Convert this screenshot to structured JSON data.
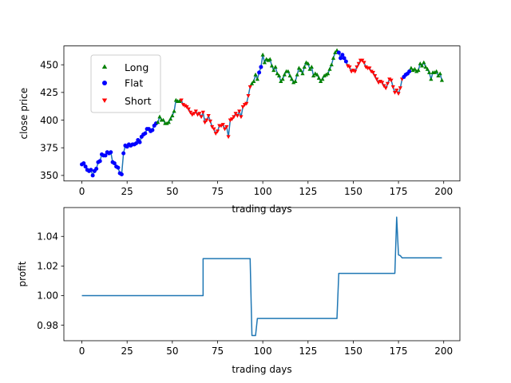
{
  "chart_data": [
    {
      "type": "line",
      "xlabel": "trading days",
      "ylabel": "close price",
      "xlim": [
        -9.95,
        208.95
      ],
      "ylim": [
        345,
        467
      ],
      "x_ticks": [
        0,
        25,
        50,
        75,
        100,
        125,
        150,
        175,
        200
      ],
      "y_ticks": [
        350,
        375,
        400,
        425,
        450
      ],
      "legend": {
        "placement": "upper-left",
        "entries": [
          {
            "label": "Long",
            "marker": "triangle-up",
            "color": "#008000"
          },
          {
            "label": "Flat",
            "marker": "circle",
            "color": "#0000ff"
          },
          {
            "label": "Short",
            "marker": "triangle-down",
            "color": "#ff0000"
          }
        ]
      },
      "line_color": "#1f77b4",
      "series": [
        {
          "x": [
            0,
            1,
            2,
            3,
            4,
            5,
            6,
            7,
            8,
            9,
            10,
            11,
            12,
            13,
            14,
            15,
            16,
            17,
            18,
            19,
            20,
            21,
            22,
            23,
            24,
            25,
            26,
            27,
            28,
            29,
            30,
            31,
            32,
            33,
            34,
            35,
            36,
            37,
            38,
            39,
            40,
            41,
            42,
            43,
            44,
            45,
            46,
            47,
            48,
            49,
            50,
            51,
            52,
            53,
            54,
            55,
            56,
            57,
            58,
            59,
            60,
            61,
            62,
            63,
            64,
            65,
            66,
            67,
            68,
            69,
            70,
            71,
            72,
            73,
            74,
            75,
            76,
            77,
            78,
            79,
            80,
            81,
            82,
            83,
            84,
            85,
            86,
            87,
            88,
            89,
            90,
            91,
            92,
            93,
            94,
            95,
            96,
            97,
            98,
            99,
            100,
            101,
            102,
            103,
            104,
            105,
            106,
            107,
            108,
            109,
            110,
            111,
            112,
            113,
            114,
            115,
            116,
            117,
            118,
            119,
            120,
            121,
            122,
            123,
            124,
            125,
            126,
            127,
            128,
            129,
            130,
            131,
            132,
            133,
            134,
            135,
            136,
            137,
            138,
            139,
            140,
            141,
            142,
            143,
            144,
            145,
            146,
            147,
            148,
            149,
            150,
            151,
            152,
            153,
            154,
            155,
            156,
            157,
            158,
            159,
            160,
            161,
            162,
            163,
            164,
            165,
            166,
            167,
            168,
            169,
            170,
            171,
            172,
            173,
            174,
            175,
            176,
            177,
            178,
            179,
            180,
            181,
            182,
            183,
            184,
            185,
            186,
            187,
            188,
            189,
            190,
            191,
            192,
            193,
            194,
            195,
            196,
            197,
            198,
            199
          ],
          "y": [
            360,
            361,
            358,
            355,
            354,
            355,
            350,
            354,
            356,
            362,
            363,
            369,
            368,
            368,
            371,
            370,
            371,
            362,
            361,
            358,
            357,
            352,
            351,
            370,
            377,
            376,
            378,
            377,
            378,
            378,
            379,
            382,
            380,
            385,
            387,
            388,
            392,
            392,
            390,
            391,
            395,
            397,
            398,
            403,
            400,
            400,
            397,
            397,
            398,
            401,
            404,
            408,
            418,
            417,
            417,
            418,
            414,
            413,
            412,
            410,
            407,
            405,
            406,
            408,
            405,
            406,
            403,
            407,
            398,
            400,
            404,
            399,
            394,
            392,
            388,
            390,
            395,
            395,
            396,
            392,
            394,
            385,
            400,
            401,
            403,
            406,
            404,
            408,
            403,
            412,
            414,
            415,
            422,
            430,
            433,
            435,
            441,
            437,
            443,
            448,
            459,
            452,
            455,
            454,
            455,
            449,
            445,
            448,
            442,
            440,
            435,
            437,
            441,
            444,
            444,
            440,
            437,
            434,
            435,
            441,
            447,
            445,
            442,
            448,
            452,
            451,
            446,
            448,
            440,
            442,
            441,
            438,
            435,
            437,
            440,
            441,
            442,
            446,
            450,
            456,
            461,
            463,
            461,
            456,
            459,
            456,
            453,
            449,
            448,
            444,
            445,
            444,
            448,
            451,
            454,
            454,
            452,
            448,
            447,
            447,
            444,
            443,
            440,
            437,
            434,
            435,
            434,
            431,
            429,
            433,
            437,
            436,
            430,
            425,
            427,
            424,
            429,
            437,
            439,
            441,
            442,
            444,
            447,
            445,
            446,
            444,
            445,
            451,
            449,
            452,
            448,
            446,
            443,
            437,
            443,
            443,
            444,
            440,
            442,
            436
          ],
          "positions": [
            "F",
            "F",
            "F",
            "F",
            "F",
            "F",
            "F",
            "F",
            "F",
            "F",
            "F",
            "F",
            "F",
            "F",
            "F",
            "F",
            "F",
            "F",
            "F",
            "F",
            "F",
            "F",
            "F",
            "F",
            "F",
            "F",
            "F",
            "F",
            "F",
            "F",
            "F",
            "F",
            "F",
            "F",
            "F",
            "F",
            "F",
            "F",
            "F",
            "F",
            "F",
            "F",
            "L",
            "L",
            "L",
            "L",
            "L",
            "L",
            "L",
            "L",
            "L",
            "L",
            "L",
            "L",
            "L",
            "S",
            "S",
            "S",
            "S",
            "S",
            "S",
            "S",
            "S",
            "S",
            "S",
            "S",
            "S",
            "S",
            "S",
            "S",
            "S",
            "S",
            "S",
            "S",
            "S",
            "S",
            "S",
            "S",
            "S",
            "S",
            "S",
            "S",
            "S",
            "S",
            "S",
            "S",
            "S",
            "S",
            "S",
            "S",
            "S",
            "S",
            "S",
            "S",
            "L",
            "L",
            "L",
            "L",
            "F",
            "F",
            "L",
            "L",
            "L",
            "L",
            "L",
            "L",
            "L",
            "L",
            "L",
            "L",
            "L",
            "L",
            "L",
            "L",
            "L",
            "L",
            "L",
            "L",
            "L",
            "L",
            "L",
            "L",
            "L",
            "L",
            "L",
            "L",
            "L",
            "L",
            "L",
            "L",
            "L",
            "L",
            "L",
            "L",
            "L",
            "L",
            "L",
            "L",
            "L",
            "L",
            "L",
            "L",
            "F",
            "F",
            "F",
            "F",
            "F",
            "S",
            "S",
            "S",
            "S",
            "S",
            "S",
            "S",
            "S",
            "S",
            "S",
            "S",
            "S",
            "S",
            "S",
            "S",
            "S",
            "S",
            "S",
            "S",
            "S",
            "S",
            "S",
            "S",
            "S",
            "S",
            "S",
            "S",
            "S",
            "S",
            "S",
            "S",
            "F",
            "F",
            "F",
            "F",
            "L",
            "L",
            "L",
            "L",
            "L",
            "L",
            "L",
            "L",
            "L",
            "L",
            "L",
            "L",
            "L",
            "L",
            "L",
            "L",
            "L",
            "L",
            "L",
            "L",
            "L",
            "L",
            "L",
            "L"
          ]
        }
      ]
    },
    {
      "type": "line",
      "xlabel": "trading days",
      "ylabel": "profit",
      "xlim": [
        -9.95,
        208.95
      ],
      "ylim": [
        0.9695,
        1.0595
      ],
      "x_ticks": [
        0,
        25,
        50,
        75,
        100,
        125,
        150,
        175,
        200
      ],
      "y_ticks": [
        0.98,
        1.0,
        1.02,
        1.04
      ],
      "y_tick_labels": [
        "0.98",
        "1.00",
        "1.02",
        "1.04"
      ],
      "line_color": "#1f77b4",
      "series": [
        {
          "points": [
            [
              0,
              1.0
            ],
            [
              67,
              1.0
            ],
            [
              67,
              1.025
            ],
            [
              93,
              1.025
            ],
            [
              94,
              0.973
            ],
            [
              96,
              0.973
            ],
            [
              97,
              0.9845
            ],
            [
              141,
              0.9845
            ],
            [
              142,
              1.015
            ],
            [
              173,
              1.015
            ],
            [
              174,
              1.053
            ],
            [
              175,
              1.0275
            ],
            [
              176,
              1.027
            ],
            [
              177,
              1.0255
            ],
            [
              199,
              1.0255
            ]
          ]
        }
      ]
    }
  ]
}
